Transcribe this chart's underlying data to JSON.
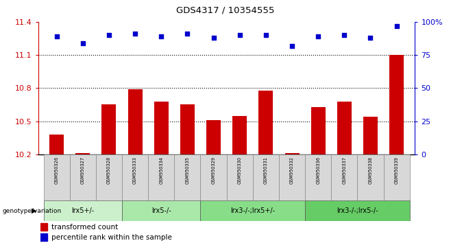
{
  "title": "GDS4317 / 10354555",
  "samples": [
    "GSM950326",
    "GSM950327",
    "GSM950328",
    "GSM950333",
    "GSM950334",
    "GSM950335",
    "GSM950329",
    "GSM950330",
    "GSM950331",
    "GSM950332",
    "GSM950336",
    "GSM950337",
    "GSM950338",
    "GSM950339"
  ],
  "bar_values": [
    10.38,
    10.21,
    10.65,
    10.79,
    10.68,
    10.65,
    10.51,
    10.55,
    10.78,
    10.21,
    10.63,
    10.68,
    10.54,
    11.1
  ],
  "dot_values": [
    89,
    84,
    90,
    91,
    89,
    91,
    88,
    90,
    90,
    82,
    89,
    90,
    88,
    97
  ],
  "ylim_left": [
    10.2,
    11.4
  ],
  "ylim_right": [
    0,
    100
  ],
  "yticks_left": [
    10.2,
    10.5,
    10.8,
    11.1,
    11.4
  ],
  "yticks_right": [
    0,
    25,
    50,
    75,
    100
  ],
  "ytick_labels_right": [
    "0",
    "25",
    "50",
    "75",
    "100%"
  ],
  "bar_color": "#cc0000",
  "dot_color": "#0000cc",
  "groups": [
    {
      "label": "lrx5+/-",
      "start": 0,
      "end": 3
    },
    {
      "label": "lrx5-/-",
      "start": 3,
      "end": 6
    },
    {
      "label": "lrx3-/-;lrx5+/-",
      "start": 6,
      "end": 10
    },
    {
      "label": "lrx3-/-;lrx5-/-",
      "start": 10,
      "end": 14
    }
  ],
  "group_colors": [
    "#ccf0cc",
    "#aae8aa",
    "#88dd88",
    "#66cc66"
  ],
  "group_row_label": "genotype/variation",
  "legend_bar_label": "transformed count",
  "legend_dot_label": "percentile rank within the sample",
  "background_color": "#ffffff",
  "axis_color_left": "#cc0000",
  "axis_color_right": "#0000cc",
  "bar_bottom": 10.2,
  "sample_box_color": "#d8d8d8"
}
